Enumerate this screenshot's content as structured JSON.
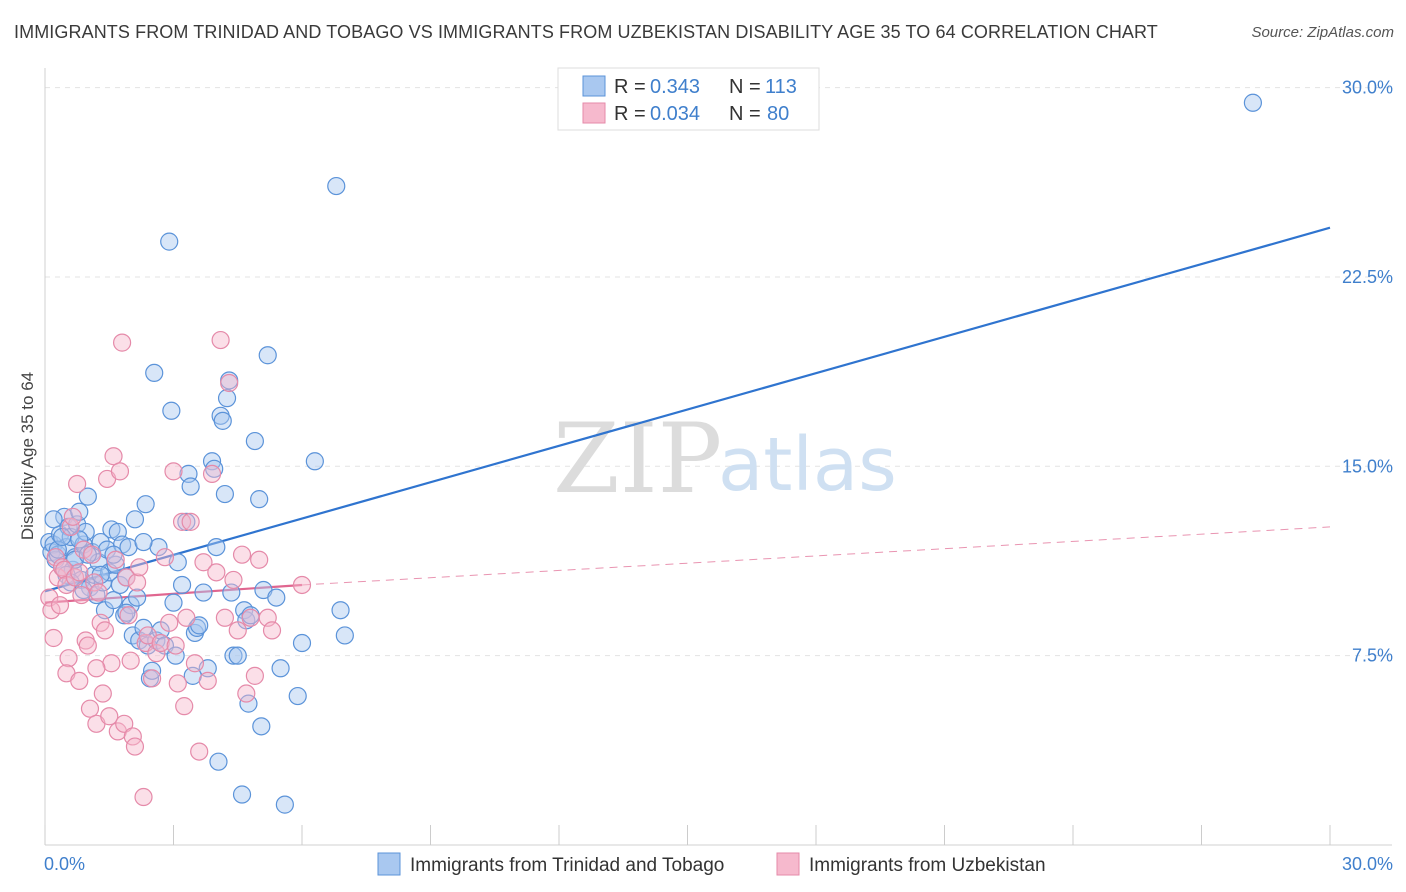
{
  "header": {
    "title": "IMMIGRANTS FROM TRINIDAD AND TOBAGO VS IMMIGRANTS FROM UZBEKISTAN DISABILITY AGE 35 TO 64 CORRELATION CHART",
    "source": "Source: ZipAtlas.com"
  },
  "watermark": {
    "zip": "ZIP",
    "atlas": "atlas"
  },
  "colors": {
    "blue_fill": "#a9c8f0",
    "blue_stroke": "#5b93d9",
    "blue_line": "#2f74cf",
    "pink_fill": "#f6b9cd",
    "pink_stroke": "#e58aa9",
    "pink_line": "#e06690",
    "grid": "#e3e3e3",
    "tick_text": "#3f7fcc"
  },
  "legend": {
    "rows": [
      {
        "r_label": "R =",
        "r_value": "0.343",
        "n_label": "N =",
        "n_value": "113"
      },
      {
        "r_label": "R =",
        "r_value": "0.034",
        "n_label": "N =",
        "n_value": "80"
      }
    ]
  },
  "chart_data": {
    "type": "scatter",
    "title": "IMMIGRANTS FROM TRINIDAD AND TOBAGO VS IMMIGRANTS FROM UZBEKISTAN DISABILITY AGE 35 TO 64 CORRELATION CHART",
    "xlabel": "",
    "ylabel": "Disability Age 35 to 64",
    "xlim": [
      0,
      30
    ],
    "ylim": [
      0,
      30.5
    ],
    "x_tick_labels": [
      "0.0%",
      "30.0%"
    ],
    "y_ticks": [
      {
        "value": 7.5,
        "label": "7.5%"
      },
      {
        "value": 15.0,
        "label": "15.0%"
      },
      {
        "value": 22.5,
        "label": "22.5%"
      },
      {
        "value": 30.0,
        "label": "30.0%"
      }
    ],
    "grid": true,
    "legend_position": "top-center",
    "series": [
      {
        "name": "Immigrants from Trinidad and Tobago",
        "R": 0.343,
        "N": 113,
        "trend": {
          "x": [
            0,
            30
          ],
          "y": [
            10.05,
            24.45
          ]
        },
        "points": [
          [
            0.1,
            12.0
          ],
          [
            0.15,
            11.6
          ],
          [
            0.2,
            11.9
          ],
          [
            0.25,
            11.3
          ],
          [
            0.3,
            11.5
          ],
          [
            0.35,
            12.3
          ],
          [
            0.4,
            11.0
          ],
          [
            0.45,
            13.0
          ],
          [
            0.5,
            11.8
          ],
          [
            0.55,
            12.6
          ],
          [
            0.6,
            12.2
          ],
          [
            0.65,
            10.9
          ],
          [
            0.7,
            11.4
          ],
          [
            0.75,
            12.7
          ],
          [
            0.8,
            13.2
          ],
          [
            0.85,
            10.5
          ],
          [
            0.9,
            11.9
          ],
          [
            0.95,
            12.4
          ],
          [
            1.0,
            13.8
          ],
          [
            1.05,
            10.2
          ],
          [
            1.1,
            11.6
          ],
          [
            1.15,
            10.7
          ],
          [
            1.2,
            9.9
          ],
          [
            1.25,
            11.2
          ],
          [
            1.3,
            12.0
          ],
          [
            1.35,
            10.4
          ],
          [
            1.4,
            9.3
          ],
          [
            1.45,
            11.7
          ],
          [
            1.5,
            10.8
          ],
          [
            1.55,
            12.5
          ],
          [
            1.6,
            9.7
          ],
          [
            1.65,
            11.1
          ],
          [
            1.7,
            12.4
          ],
          [
            1.75,
            10.3
          ],
          [
            1.8,
            11.9
          ],
          [
            1.85,
            9.1
          ],
          [
            1.9,
            10.6
          ],
          [
            1.95,
            11.8
          ],
          [
            2.0,
            9.5
          ],
          [
            2.05,
            8.3
          ],
          [
            2.1,
            12.9
          ],
          [
            2.15,
            9.8
          ],
          [
            2.2,
            8.1
          ],
          [
            2.3,
            8.6
          ],
          [
            2.35,
            13.5
          ],
          [
            2.4,
            7.9
          ],
          [
            2.45,
            6.6
          ],
          [
            2.5,
            6.9
          ],
          [
            2.55,
            18.7
          ],
          [
            2.6,
            8.1
          ],
          [
            2.65,
            11.8
          ],
          [
            2.7,
            8.5
          ],
          [
            2.8,
            7.9
          ],
          [
            2.9,
            23.9
          ],
          [
            2.95,
            17.2
          ],
          [
            3.0,
            9.6
          ],
          [
            3.05,
            7.5
          ],
          [
            3.1,
            11.2
          ],
          [
            3.2,
            10.3
          ],
          [
            3.3,
            12.8
          ],
          [
            3.35,
            14.7
          ],
          [
            3.4,
            14.2
          ],
          [
            3.45,
            6.7
          ],
          [
            3.5,
            8.4
          ],
          [
            3.55,
            8.6
          ],
          [
            3.6,
            8.7
          ],
          [
            3.7,
            10.0
          ],
          [
            3.8,
            7.0
          ],
          [
            3.9,
            15.2
          ],
          [
            3.95,
            14.9
          ],
          [
            4.0,
            11.8
          ],
          [
            4.05,
            3.3
          ],
          [
            4.1,
            17.0
          ],
          [
            4.15,
            16.8
          ],
          [
            4.2,
            13.9
          ],
          [
            4.25,
            17.7
          ],
          [
            4.3,
            18.4
          ],
          [
            4.35,
            10.0
          ],
          [
            4.4,
            7.5
          ],
          [
            4.5,
            7.5
          ],
          [
            4.6,
            2.0
          ],
          [
            4.65,
            9.3
          ],
          [
            4.7,
            8.9
          ],
          [
            4.75,
            5.6
          ],
          [
            4.8,
            9.1
          ],
          [
            4.9,
            16.0
          ],
          [
            5.0,
            13.7
          ],
          [
            5.05,
            4.7
          ],
          [
            5.1,
            10.1
          ],
          [
            5.2,
            19.4
          ],
          [
            5.4,
            9.8
          ],
          [
            5.5,
            7.0
          ],
          [
            5.6,
            1.6
          ],
          [
            5.9,
            5.9
          ],
          [
            6.0,
            8.0
          ],
          [
            6.3,
            15.2
          ],
          [
            6.8,
            26.1
          ],
          [
            6.9,
            9.3
          ],
          [
            7.0,
            8.3
          ],
          [
            28.2,
            29.4
          ],
          [
            0.2,
            12.9
          ],
          [
            0.3,
            11.7
          ],
          [
            0.4,
            12.2
          ],
          [
            0.5,
            10.7
          ],
          [
            0.6,
            10.4
          ],
          [
            0.7,
            11.3
          ],
          [
            0.8,
            12.1
          ],
          [
            0.9,
            10.1
          ],
          [
            1.0,
            11.5
          ],
          [
            1.3,
            10.7
          ],
          [
            1.6,
            11.5
          ],
          [
            1.9,
            9.2
          ],
          [
            2.3,
            12.0
          ]
        ]
      },
      {
        "name": "Immigrants from Uzbekistan",
        "R": 0.034,
        "N": 80,
        "trend": {
          "x": [
            0,
            6.0
          ],
          "y": [
            9.6,
            10.3
          ]
        },
        "trend_extended": {
          "x": [
            6.0,
            30
          ],
          "y": [
            10.3,
            12.6
          ]
        },
        "points": [
          [
            0.1,
            9.8
          ],
          [
            0.15,
            9.3
          ],
          [
            0.2,
            8.2
          ],
          [
            0.25,
            11.4
          ],
          [
            0.3,
            10.6
          ],
          [
            0.35,
            9.5
          ],
          [
            0.4,
            11.0
          ],
          [
            0.45,
            10.9
          ],
          [
            0.5,
            10.3
          ],
          [
            0.55,
            7.4
          ],
          [
            0.6,
            12.6
          ],
          [
            0.65,
            13.0
          ],
          [
            0.7,
            10.6
          ],
          [
            0.75,
            14.3
          ],
          [
            0.8,
            10.8
          ],
          [
            0.85,
            9.9
          ],
          [
            0.9,
            11.7
          ],
          [
            0.95,
            8.1
          ],
          [
            1.0,
            7.9
          ],
          [
            1.05,
            5.4
          ],
          [
            1.1,
            11.5
          ],
          [
            1.15,
            10.4
          ],
          [
            1.2,
            4.8
          ],
          [
            1.25,
            10.0
          ],
          [
            1.3,
            8.8
          ],
          [
            1.35,
            6.0
          ],
          [
            1.4,
            8.5
          ],
          [
            1.45,
            14.5
          ],
          [
            1.5,
            5.1
          ],
          [
            1.55,
            7.2
          ],
          [
            1.6,
            15.4
          ],
          [
            1.65,
            11.3
          ],
          [
            1.7,
            4.5
          ],
          [
            1.75,
            14.8
          ],
          [
            1.8,
            19.9
          ],
          [
            1.85,
            4.8
          ],
          [
            1.9,
            10.6
          ],
          [
            1.95,
            9.1
          ],
          [
            2.0,
            7.3
          ],
          [
            2.05,
            4.3
          ],
          [
            2.1,
            3.9
          ],
          [
            2.15,
            10.4
          ],
          [
            2.2,
            11.0
          ],
          [
            2.3,
            1.9
          ],
          [
            2.35,
            8.0
          ],
          [
            2.4,
            8.3
          ],
          [
            2.5,
            6.6
          ],
          [
            2.6,
            7.6
          ],
          [
            2.7,
            8.0
          ],
          [
            2.8,
            11.4
          ],
          [
            2.9,
            8.8
          ],
          [
            3.0,
            14.8
          ],
          [
            3.05,
            7.9
          ],
          [
            3.1,
            6.4
          ],
          [
            3.2,
            12.8
          ],
          [
            3.25,
            5.5
          ],
          [
            3.3,
            9.0
          ],
          [
            3.4,
            12.8
          ],
          [
            3.5,
            7.2
          ],
          [
            3.6,
            3.7
          ],
          [
            3.7,
            11.2
          ],
          [
            3.8,
            6.5
          ],
          [
            3.9,
            14.7
          ],
          [
            4.0,
            10.8
          ],
          [
            4.1,
            20.0
          ],
          [
            4.2,
            9.0
          ],
          [
            4.3,
            18.3
          ],
          [
            4.4,
            10.5
          ],
          [
            4.5,
            8.5
          ],
          [
            4.6,
            11.5
          ],
          [
            4.7,
            6.0
          ],
          [
            4.8,
            9.0
          ],
          [
            4.9,
            6.7
          ],
          [
            5.0,
            11.3
          ],
          [
            5.2,
            9.0
          ],
          [
            5.3,
            8.5
          ],
          [
            6.0,
            10.3
          ],
          [
            0.5,
            6.8
          ],
          [
            0.8,
            6.5
          ],
          [
            1.2,
            7.0
          ]
        ]
      }
    ]
  }
}
